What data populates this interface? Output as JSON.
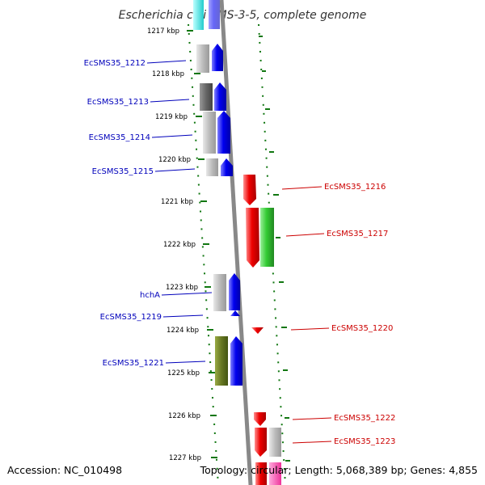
{
  "title": "Escherichia coli SMS-3-5, complete genome",
  "footer": {
    "accession": "Accession: NC_010498",
    "topology": "Topology: circular; Length: 5,068,389 bp; Genes: 4,855"
  },
  "ruler_ticks": [
    "1217 kbp",
    "1218 kbp",
    "1219 kbp",
    "1220 kbp",
    "1221 kbp",
    "1222 kbp",
    "1223 kbp",
    "1224 kbp",
    "1225 kbp",
    "1226 kbp",
    "1227 kbp"
  ],
  "genes_left": [
    {
      "label": "EcSMS35_1212",
      "color": "#0000ee",
      "cog_color": "#aaaaaa"
    },
    {
      "label": "EcSMS35_1213",
      "color": "#0000ee",
      "cog_color": "#666666"
    },
    {
      "label": "EcSMS35_1214",
      "color": "#0000ee",
      "cog_color": "#bbbbbb"
    },
    {
      "label": "EcSMS35_1215",
      "color": "#0000ee",
      "cog_color": "#aaaaaa"
    },
    {
      "label": "hchA",
      "color": "#0000ee",
      "cog_color": "#bbbbbb"
    },
    {
      "label": "EcSMS35_1219",
      "color": "#0000ee",
      "cog_color": ""
    },
    {
      "label": "EcSMS35_1221",
      "color": "#0000ee",
      "cog_color": "#667722"
    }
  ],
  "genes_right": [
    {
      "label": "EcSMS35_1216",
      "color": "#ee0000",
      "cog_color": ""
    },
    {
      "label": "EcSMS35_1217",
      "color": "#ee0000",
      "cog_color": "#33cc33"
    },
    {
      "label": "EcSMS35_1220",
      "color": "#ee0000",
      "cog_color": ""
    },
    {
      "label": "EcSMS35_1222",
      "color": "#ee0000",
      "cog_color": ""
    },
    {
      "label": "EcSMS35_1223",
      "color": "#ee0000",
      "cog_color": "#bbbbbb"
    }
  ],
  "colors": {
    "forward_strand": "#0000ee",
    "reverse_strand": "#ee0000",
    "tick": "#117711",
    "backbone": "#888888"
  }
}
